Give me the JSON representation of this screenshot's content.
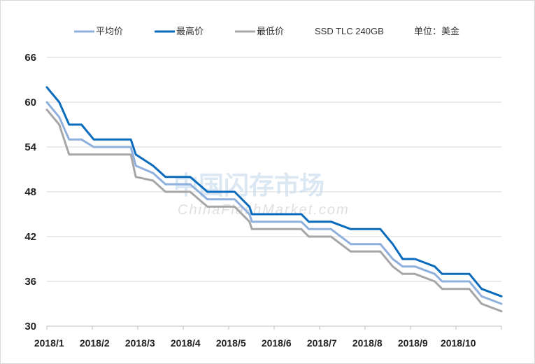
{
  "chart_data": {
    "type": "line",
    "subtitle": "SSD TLC 240GB",
    "unit_label": "单位：美金",
    "ylim": [
      30,
      66
    ],
    "yticks": [
      30,
      36,
      42,
      48,
      54,
      60,
      66
    ],
    "grid": true,
    "legend_position": "top",
    "x_labels": [
      "2018/1",
      "2018/2",
      "2018/3",
      "2018/4",
      "2018/5",
      "2018/6",
      "2018/7",
      "2018/8",
      "2018/9",
      "2018/10"
    ],
    "x": [
      1.0,
      1.25,
      1.45,
      1.7,
      1.95,
      2.7,
      2.8,
      3.15,
      3.4,
      3.9,
      4.25,
      4.8,
      5.1,
      5.15,
      6.15,
      6.3,
      6.75,
      7.15,
      7.55,
      7.75,
      8.0,
      8.2,
      8.45,
      8.85,
      9.0,
      9.55,
      9.8,
      10.2
    ],
    "series": [
      {
        "name": "平均价",
        "color": "#8fb0dd",
        "values": [
          60,
          58,
          55,
          55,
          54,
          54,
          51.5,
          50.5,
          49,
          49,
          47,
          47,
          45,
          44,
          44,
          43,
          43,
          41,
          41,
          41,
          39,
          38,
          38,
          37,
          36,
          36,
          34,
          33
        ]
      },
      {
        "name": "最高价",
        "color": "#0a6bbd",
        "values": [
          62,
          60,
          57,
          57,
          55,
          55,
          53,
          51.5,
          50,
          50,
          48,
          48,
          46,
          45,
          45,
          44,
          44,
          43,
          43,
          43,
          41,
          39,
          39,
          38,
          37,
          37,
          35,
          34
        ]
      },
      {
        "name": "最低价",
        "color": "#a6a6a6",
        "values": [
          59,
          57,
          53,
          53,
          53,
          53,
          50,
          49.5,
          48,
          48,
          46,
          46,
          44,
          43,
          43,
          42,
          42,
          40,
          40,
          40,
          38,
          37,
          37,
          36,
          35,
          35,
          33,
          32
        ]
      }
    ]
  },
  "watermark": {
    "cn": "中国闪存市场",
    "en": "ChinaFlashMarket.com"
  }
}
